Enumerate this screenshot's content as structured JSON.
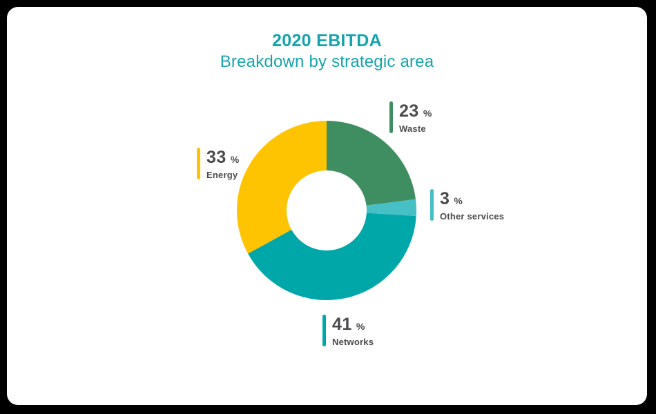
{
  "frame": {
    "background_color": "#000000",
    "card_background_color": "#ffffff"
  },
  "header": {
    "title": "2020 EBITDA",
    "subtitle": "Breakdown by strategic area",
    "accent_color": "#17a3ab"
  },
  "chart_data": {
    "type": "pie",
    "donut": true,
    "title": "2020 EBITDA",
    "subtitle": "Breakdown by strategic area",
    "unit": "%",
    "start_angle_deg": 0,
    "direction": "clockwise",
    "inner_radius_ratio": 0.446,
    "text_color": "#4b4b4d",
    "segments": [
      {
        "label": "Waste",
        "value": 23,
        "color": "#3f8e61"
      },
      {
        "label": "Other services",
        "value": 3,
        "color": "#46bfc5"
      },
      {
        "label": "Networks",
        "value": 41,
        "color": "#00a7a9"
      },
      {
        "label": "Energy",
        "value": 33,
        "color": "#fec401"
      }
    ]
  }
}
